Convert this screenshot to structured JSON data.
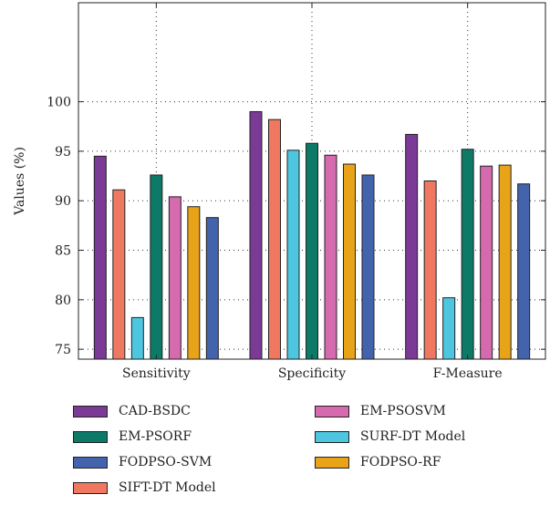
{
  "chart_data": {
    "type": "bar",
    "title": "",
    "xlabel": "",
    "ylabel": "Values (%)",
    "ylim": [
      74,
      110
    ],
    "yticks": [
      75,
      80,
      85,
      90,
      95,
      100
    ],
    "grid": true,
    "legend_position": "bottom",
    "categories": [
      "Sensitivity",
      "Specificity",
      "F-Measure"
    ],
    "series": [
      {
        "name": "CAD-BSDC",
        "color": "#7b3a96",
        "values": [
          94.5,
          99.0,
          96.7
        ]
      },
      {
        "name": "SIFT-DT Model",
        "color": "#f07860",
        "values": [
          91.1,
          98.2,
          92.0
        ]
      },
      {
        "name": "SURF-DT Model",
        "color": "#4ec6e0",
        "values": [
          78.2,
          95.1,
          80.2
        ]
      },
      {
        "name": "EM-PSORF",
        "color": "#0d7a68",
        "values": [
          92.6,
          95.8,
          95.2
        ]
      },
      {
        "name": "EM-PSOSVM",
        "color": "#d66aae",
        "values": [
          90.4,
          94.6,
          93.5
        ]
      },
      {
        "name": "FODPSO-RF",
        "color": "#e9a319",
        "values": [
          89.4,
          93.7,
          93.6
        ]
      },
      {
        "name": "FODPSO-SVM",
        "color": "#4463ad",
        "values": [
          88.3,
          92.6,
          91.7
        ]
      }
    ]
  },
  "legend": {
    "items": [
      {
        "label": "CAD-BSDC",
        "color": "#7b3a96"
      },
      {
        "label": "EM-PSOSVM",
        "color": "#d66aae"
      },
      {
        "label": "EM-PSORF",
        "color": "#0d7a68"
      },
      {
        "label": "SURF-DT Model",
        "color": "#4ec6e0"
      },
      {
        "label": "FODPSO-SVM",
        "color": "#4463ad"
      },
      {
        "label": "FODPSO-RF",
        "color": "#e9a319"
      },
      {
        "label": "SIFT-DT Model",
        "color": "#f07860"
      }
    ]
  }
}
